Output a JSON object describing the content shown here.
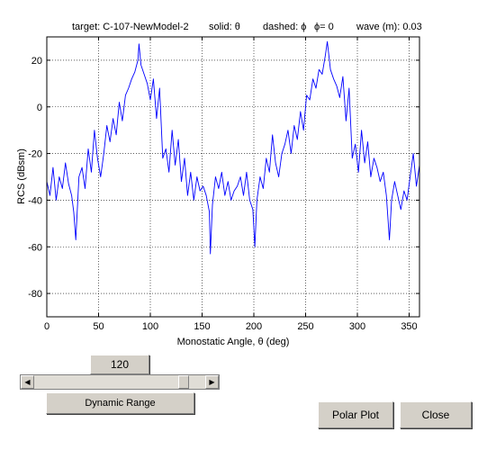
{
  "header": {
    "target": "target: C-107-NewModel-2",
    "solid": "solid: θ",
    "dashed": "dashed: ϕ",
    "phi": "ϕ= 0",
    "wave": "wave (m): 0.03"
  },
  "chart_data": {
    "type": "line",
    "title": "",
    "xlabel": "Monostatic Angle, θ (deg)",
    "ylabel": "RCS (dBsm)",
    "xlim": [
      0,
      360
    ],
    "ylim": [
      -90,
      30
    ],
    "xticks": [
      0,
      50,
      100,
      150,
      200,
      250,
      300,
      350
    ],
    "yticks": [
      20,
      0,
      -20,
      -40,
      -60,
      -80
    ],
    "xtick_labels": [
      "0",
      "50",
      "100",
      "150",
      "200",
      "250",
      "300",
      "350"
    ],
    "ytick_labels": [
      "20",
      "0",
      "-20",
      "-40",
      "-60",
      "-80"
    ],
    "grid": true,
    "line_color": "#0000ff",
    "series": [
      {
        "style": "solid",
        "x": [
          0,
          3,
          6,
          9,
          12,
          15,
          18,
          21,
          24,
          26,
          28,
          31,
          34,
          37,
          40,
          43,
          46,
          49,
          52,
          55,
          58,
          61,
          64,
          67,
          70,
          73,
          76,
          79,
          82,
          85,
          88,
          89,
          91,
          94,
          97,
          100,
          103,
          106,
          109,
          112,
          115,
          118,
          121,
          124,
          127,
          130,
          133,
          136,
          139,
          142,
          145,
          148,
          151,
          154,
          157,
          158,
          160,
          163,
          166,
          169,
          172,
          175,
          178,
          181,
          184,
          187,
          190,
          193,
          196,
          199,
          201,
          203,
          206,
          209,
          212,
          215,
          218,
          221,
          224,
          227,
          230,
          233,
          236,
          239,
          242,
          245,
          248,
          251,
          254,
          257,
          260,
          263,
          266,
          269,
          271,
          274,
          277,
          280,
          283,
          286,
          289,
          292,
          295,
          298,
          301,
          304,
          307,
          310,
          313,
          316,
          319,
          322,
          325,
          328,
          331,
          333,
          336,
          339,
          342,
          345,
          348,
          351,
          354,
          357,
          360
        ],
        "y": [
          -32,
          -38,
          -26,
          -40,
          -30,
          -35,
          -24,
          -33,
          -38,
          -45,
          -57,
          -30,
          -26,
          -35,
          -18,
          -28,
          -10,
          -22,
          -30,
          -20,
          -8,
          -15,
          -5,
          -12,
          2,
          -6,
          5,
          8,
          12,
          15,
          20,
          27,
          18,
          14,
          10,
          3,
          12,
          -5,
          8,
          -22,
          -18,
          -28,
          -10,
          -25,
          -14,
          -32,
          -22,
          -38,
          -28,
          -40,
          -30,
          -36,
          -34,
          -38,
          -45,
          -63,
          -42,
          -30,
          -35,
          -28,
          -38,
          -32,
          -40,
          -36,
          -34,
          -30,
          -38,
          -28,
          -40,
          -44,
          -60,
          -40,
          -30,
          -35,
          -22,
          -28,
          -12,
          -24,
          -30,
          -20,
          -16,
          -10,
          -20,
          -8,
          -14,
          -2,
          -10,
          5,
          3,
          12,
          8,
          16,
          14,
          22,
          28,
          16,
          12,
          9,
          4,
          13,
          -6,
          8,
          -22,
          -16,
          -28,
          -10,
          -24,
          -15,
          -30,
          -22,
          -26,
          -32,
          -28,
          -38,
          -57,
          -40,
          -32,
          -38,
          -44,
          -36,
          -40,
          -30,
          -20,
          -34,
          -25
        ]
      }
    ]
  },
  "controls": {
    "range_value": "120",
    "slider_value": 0.9,
    "dynamic_range_label": "Dynamic Range",
    "polar_plot_label": "Polar Plot",
    "close_label": "Close"
  }
}
